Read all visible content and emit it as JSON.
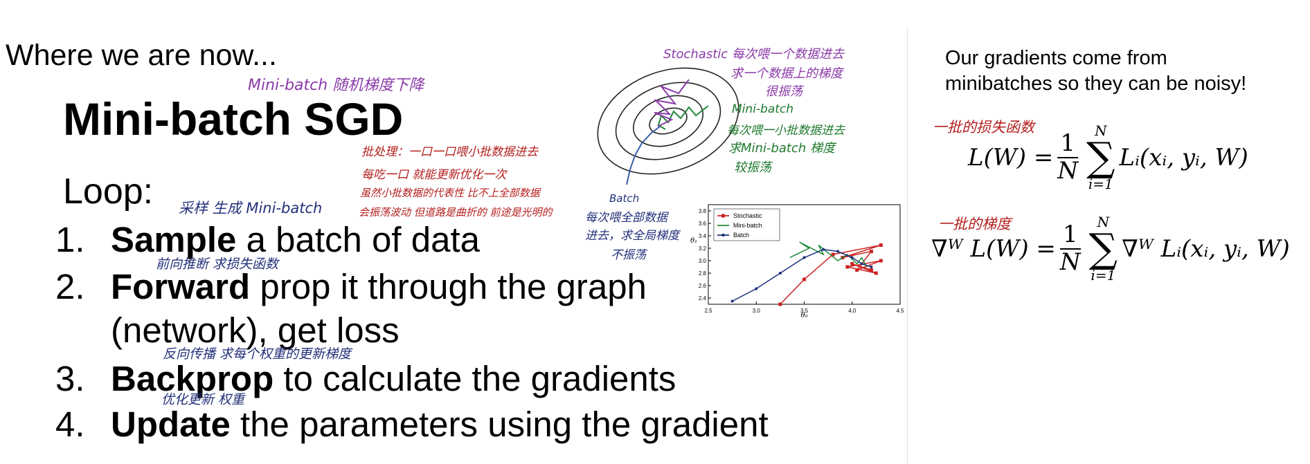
{
  "slide": {
    "section_header": "Where we are now...",
    "title": "Mini-batch SGD",
    "loop_label": "Loop:",
    "steps": [
      {
        "num": "1.",
        "bold": "Sample",
        "rest": " a batch of data"
      },
      {
        "num": "2.",
        "bold": "Forward",
        "rest": " prop it through the graph"
      },
      {
        "num": "",
        "bold": "",
        "rest": "(network), get loss"
      },
      {
        "num": "3.",
        "bold": "Backprop",
        "rest": " to calculate the gradients"
      },
      {
        "num": "4.",
        "bold": "Update",
        "rest": " the parameters using the gradient"
      }
    ]
  },
  "right_panel": {
    "note_line1": "Our gradients come from",
    "note_line2": "minibatches so they can be noisy!",
    "eq1": {
      "lhs": "L(W) =",
      "num": "1",
      "den": "N",
      "sum_top": "N",
      "sum_bottom": "i=1",
      "rhs": "Lᵢ(xᵢ, yᵢ, W)"
    },
    "eq2": {
      "lhs": "∇ᵂ L(W) =",
      "num": "1",
      "den": "N",
      "sum_top": "N",
      "sum_bottom": "i=1",
      "rhs": "∇ᵂ Lᵢ(xᵢ, yᵢ, W)"
    }
  },
  "annotations": {
    "minibatch_sgd_note": "Mini-batch 随机梯度下降",
    "batch_process_1": "批处理：一口一口喂小批数据进去",
    "batch_process_2": "每吃一口 就能更新优化一次",
    "batch_process_3": "虽然小批数据的代表性 比不上全部数据",
    "batch_process_4": "会振荡波动 但道路是曲折的 前途是光明的",
    "sample_note": "采样 生成 Mini-batch",
    "forward_note": "前向推断 求损失函数",
    "backprop_note": "反向传播 求每个权重的更新梯度",
    "update_note": "优化更新 权重",
    "stochastic_1": "Stochastic 每次喂一个数据进去",
    "stochastic_2": "求一个数据上的梯度",
    "stochastic_3": "很振荡",
    "minibatch_1": "Mini-batch",
    "minibatch_2": "每次喂一小批数据进去",
    "minibatch_3": "求Mini-batch 梯度",
    "minibatch_4": "较振荡",
    "batch_1": "Batch",
    "batch_2": "每次喂全部数据",
    "batch_3": "进去，求全局梯度",
    "batch_4": "不振荡",
    "loss_label": "一批的损失函数",
    "grad_label": "一批的梯度"
  },
  "chart_data": {
    "type": "line",
    "xlabel": "θ₀",
    "ylabel": "θ₁",
    "xlim": [
      2.5,
      4.5
    ],
    "ylim": [
      2.3,
      3.9
    ],
    "xticks": [
      "2.5",
      "3.0",
      "3.5",
      "4.0",
      "4.5"
    ],
    "yticks": [
      "2.4",
      "2.6",
      "2.8",
      "3.0",
      "3.2",
      "3.4",
      "3.6",
      "3.8"
    ],
    "legend_position": "top-left",
    "series": [
      {
        "name": "Stochastic",
        "color": "#cc2222",
        "x": [
          3.25,
          3.5,
          3.8,
          4.3,
          3.9,
          4.2,
          4.05,
          4.3,
          3.95,
          4.25,
          4.0,
          4.2
        ],
        "y": [
          2.3,
          2.7,
          3.1,
          3.25,
          3.05,
          3.15,
          2.85,
          3.0,
          2.9,
          2.8,
          2.95,
          2.85
        ]
      },
      {
        "name": "Mini-batch",
        "color": "#1f8a3a",
        "x": [
          3.35,
          3.55,
          3.45,
          3.7,
          3.65,
          3.85,
          3.95,
          4.05,
          4.1,
          4.15
        ],
        "y": [
          3.05,
          3.2,
          3.3,
          3.1,
          3.25,
          3.0,
          3.1,
          2.95,
          3.05,
          2.9
        ]
      },
      {
        "name": "Batch",
        "color": "#1a2f7a",
        "x": [
          2.75,
          3.0,
          3.25,
          3.5,
          3.7,
          3.85,
          4.0,
          4.1,
          4.2
        ],
        "y": [
          2.35,
          2.55,
          2.8,
          3.05,
          3.18,
          3.15,
          3.05,
          2.95,
          2.9
        ]
      }
    ]
  }
}
